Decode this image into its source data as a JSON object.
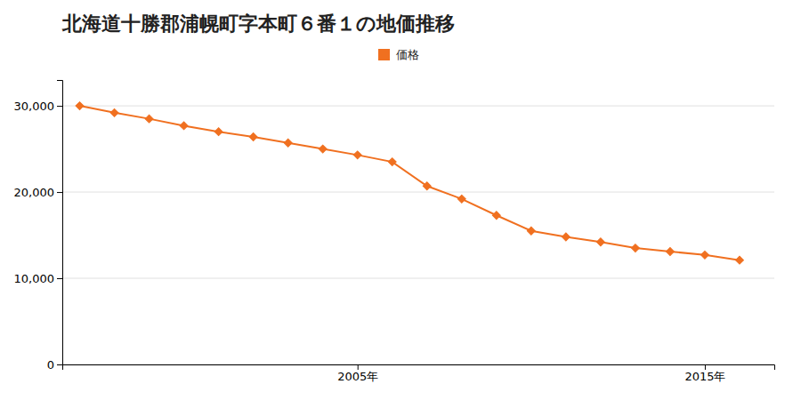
{
  "chart_data": {
    "type": "line",
    "title": "北海道十勝郡浦幌町字本町６番１の地価推移",
    "x": [
      1997,
      1998,
      1999,
      2000,
      2001,
      2002,
      2003,
      2004,
      2005,
      2006,
      2007,
      2008,
      2009,
      2010,
      2011,
      2012,
      2013,
      2014,
      2015,
      2016
    ],
    "series": [
      {
        "name": "価格",
        "color": "#f07020",
        "marker": "diamond",
        "values": [
          30000,
          29200,
          28500,
          27700,
          27000,
          26400,
          25700,
          25000,
          24300,
          23500,
          20700,
          19200,
          17300,
          15500,
          14800,
          14200,
          13500,
          13100,
          12700,
          12100
        ]
      }
    ],
    "xlim": [
      1996.5,
      2017
    ],
    "xticks": [
      {
        "value": 2005,
        "label": "2005年"
      },
      {
        "value": 2015,
        "label": "2015年"
      }
    ],
    "ylim": [
      0,
      33000
    ],
    "yticks": [
      0,
      {
        "value": 10000,
        "label": "10,000"
      },
      {
        "value": 20000,
        "label": "20,000"
      },
      {
        "value": 30000,
        "label": "30,000"
      }
    ],
    "grid": true,
    "legend": "top"
  }
}
